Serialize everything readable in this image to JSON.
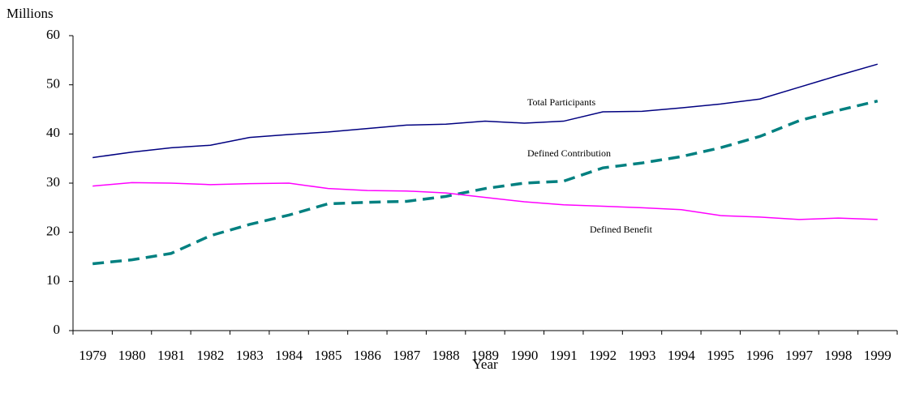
{
  "chart_data": {
    "type": "line",
    "y_label": "Millions",
    "x_label": "Year",
    "categories": [
      "1979",
      "1980",
      "1981",
      "1982",
      "1983",
      "1984",
      "1985",
      "1986",
      "1987",
      "1988",
      "1989",
      "1990",
      "1991",
      "1992",
      "1993",
      "1994",
      "1995",
      "1996",
      "1997",
      "1998",
      "1999"
    ],
    "series": [
      {
        "name": "Total Participants",
        "color": "#000080",
        "dashed": false,
        "values": [
          35.2,
          36.3,
          37.2,
          37.7,
          39.3,
          39.9,
          40.4,
          41.1,
          41.8,
          42.0,
          42.6,
          42.2,
          42.6,
          44.5,
          44.6,
          45.3,
          46.1,
          47.1,
          49.5,
          51.9,
          54.2
        ]
      },
      {
        "name": "Defined Contribution",
        "color": "#008080",
        "dashed": true,
        "values": [
          13.6,
          14.4,
          15.7,
          19.3,
          21.6,
          23.5,
          25.8,
          26.1,
          26.3,
          27.3,
          28.9,
          30.0,
          30.4,
          33.1,
          34.1,
          35.4,
          37.2,
          39.5,
          42.7,
          44.8,
          46.7
        ]
      },
      {
        "name": "Defined Benefit",
        "color": "#ff00ff",
        "dashed": false,
        "values": [
          29.4,
          30.1,
          30.0,
          29.7,
          29.9,
          30.0,
          28.9,
          28.5,
          28.4,
          28.0,
          27.1,
          26.2,
          25.6,
          25.3,
          25.0,
          24.6,
          23.4,
          23.1,
          22.6,
          22.9,
          22.6
        ]
      }
    ],
    "ylim": [
      0,
      60
    ],
    "yticks": [
      0,
      10,
      20,
      30,
      40,
      50,
      60
    ],
    "grid": false
  }
}
